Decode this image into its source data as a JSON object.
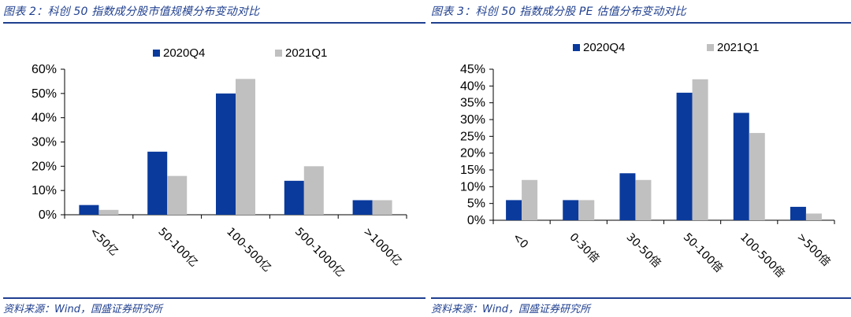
{
  "colors": {
    "accent": "#1f3f8f",
    "series1": "#0a3a9c",
    "series2": "#c0c0c0"
  },
  "left": {
    "title": "图表 2：科创 50 指数成分股市值规模分布变动对比",
    "source": "资料来源：Wind，国盛证券研究所"
  },
  "right": {
    "title": "图表 3：科创 50 指数成分股 PE 估值分布变动对比",
    "source": "资料来源：Wind，国盛证券研究所"
  },
  "chart_data": [
    {
      "type": "bar",
      "categories": [
        "<50亿",
        "50-100亿",
        "100-500亿",
        "500-1000亿",
        ">1000亿"
      ],
      "series": [
        {
          "name": "2020Q4",
          "values": [
            4,
            26,
            50,
            14,
            6
          ]
        },
        {
          "name": "2021Q1",
          "values": [
            2,
            16,
            56,
            20,
            6
          ]
        }
      ],
      "ylim": [
        0,
        60
      ],
      "yticks": [
        0,
        10,
        20,
        30,
        40,
        50,
        60
      ],
      "ytick_labels": [
        "0%",
        "10%",
        "20%",
        "30%",
        "40%",
        "50%",
        "60%"
      ],
      "unit": "%",
      "legend": "top-center",
      "grid": false
    },
    {
      "type": "bar",
      "categories": [
        "<0",
        "0-30倍",
        "30-50倍",
        "50-100倍",
        "100-500倍",
        ">500倍"
      ],
      "series": [
        {
          "name": "2020Q4",
          "values": [
            6,
            6,
            14,
            38,
            32,
            4
          ]
        },
        {
          "name": "2021Q1",
          "values": [
            12,
            6,
            12,
            42,
            26,
            2
          ]
        }
      ],
      "ylim": [
        0,
        45
      ],
      "yticks": [
        0,
        5,
        10,
        15,
        20,
        25,
        30,
        35,
        40,
        45
      ],
      "ytick_labels": [
        "0%",
        "5%",
        "10%",
        "15%",
        "20%",
        "25%",
        "30%",
        "35%",
        "40%",
        "45%"
      ],
      "unit": "%",
      "legend": "top-center",
      "grid": false
    }
  ]
}
